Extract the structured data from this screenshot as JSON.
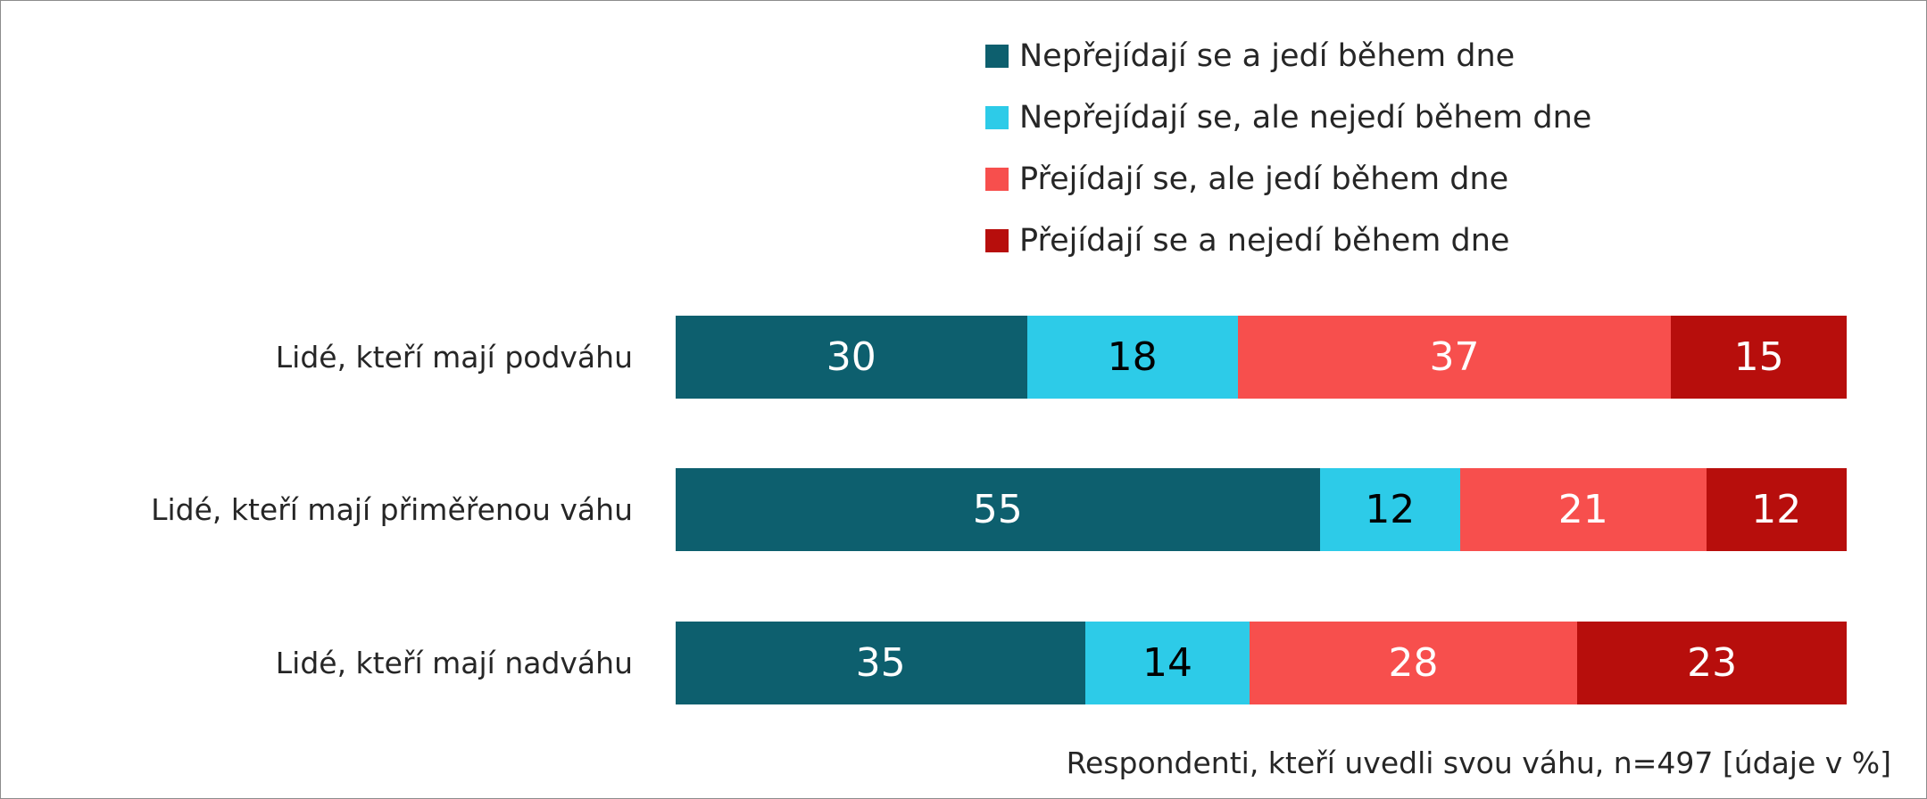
{
  "chart_data": {
    "type": "bar",
    "orientation": "horizontal",
    "stacked": true,
    "categories": [
      "Lidé, kteří mají podváhu",
      "Lidé, kteří mají přiměřenou váhu",
      "Lidé, kteří mají nadváhu"
    ],
    "series": [
      {
        "name": "Nepřejídají se a jedí během dne",
        "color": "#0d5f6e",
        "label_color": "#ffffff",
        "values": [
          30,
          55,
          35
        ]
      },
      {
        "name": "Nepřejídají se, ale nejedí během dne",
        "color": "#2dcbe8",
        "label_color": "#000000",
        "values": [
          18,
          12,
          14
        ]
      },
      {
        "name": "Přejídají se, ale jedí během dne",
        "color": "#f74f4d",
        "label_color": "#ffffff",
        "values": [
          37,
          21,
          28
        ]
      },
      {
        "name": "Přejídají se a nejedí během dne",
        "color": "#b70e0c",
        "label_color": "#ffffff",
        "values": [
          15,
          12,
          23
        ]
      }
    ],
    "xlim": [
      0,
      100
    ],
    "legend_position": "top-right",
    "footnote": "Respondenti, kteří uvedli svou váhu, n=497 [údaje v %]"
  }
}
